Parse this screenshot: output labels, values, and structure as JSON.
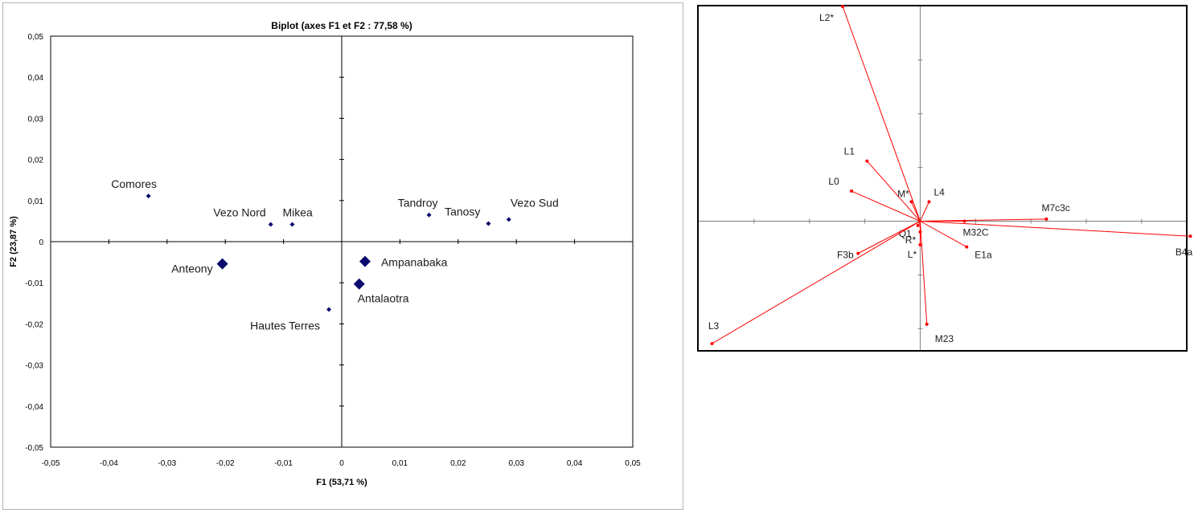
{
  "chart_data": [
    {
      "type": "scatter",
      "title": "Biplot (axes F1 et F2 : 77,58 %)",
      "xlabel": "F1 (53,71 %)",
      "ylabel": "F2 (23,87 %)",
      "xlim": [
        -0.05,
        0.05
      ],
      "ylim": [
        -0.05,
        0.05
      ],
      "xticks": [
        "-0,05",
        "-0,04",
        "-0,03",
        "-0,02",
        "-0,01",
        "0",
        "0,01",
        "0,02",
        "0,03",
        "0,04",
        "0,05"
      ],
      "yticks": [
        "0,05",
        "0,04",
        "0,03",
        "0,02",
        "0,01",
        "0",
        "-0,01",
        "-0,02",
        "-0,03",
        "-0,04",
        "-0,05"
      ],
      "grid": false,
      "marker_color": "#0a0a6e",
      "points": [
        {
          "label": "Comores",
          "x": -0.0332,
          "y": 0.0111,
          "size": "small"
        },
        {
          "label": "Vezo Nord",
          "x": -0.0122,
          "y": 0.0042,
          "size": "small"
        },
        {
          "label": "Mikea",
          "x": -0.0085,
          "y": 0.0042,
          "size": "small"
        },
        {
          "label": "Tandroy",
          "x": 0.015,
          "y": 0.0065,
          "size": "small"
        },
        {
          "label": "Tanosy",
          "x": 0.0252,
          "y": 0.0044,
          "size": "small"
        },
        {
          "label": "Vezo Sud",
          "x": 0.0287,
          "y": 0.0054,
          "size": "small"
        },
        {
          "label": "Anteony",
          "x": -0.0205,
          "y": -0.0054,
          "size": "large"
        },
        {
          "label": "Ampanabaka",
          "x": 0.004,
          "y": -0.0048,
          "size": "large"
        },
        {
          "label": "Antalaotra",
          "x": 0.003,
          "y": -0.0103,
          "size": "large"
        },
        {
          "label": "Hautes Terres",
          "x": -0.0022,
          "y": -0.0165,
          "size": "small"
        }
      ]
    },
    {
      "type": "vector",
      "title": "",
      "xlim": [
        -1.0,
        1.2
      ],
      "ylim": [
        -0.6,
        1.0
      ],
      "vector_color": "#ff0000",
      "vectors": [
        {
          "label": "L2*",
          "x": -0.35,
          "y": 1.0
        },
        {
          "label": "L1",
          "x": -0.24,
          "y": 0.28
        },
        {
          "label": "L0",
          "x": -0.31,
          "y": 0.14
        },
        {
          "label": "M*",
          "x": -0.04,
          "y": 0.09
        },
        {
          "label": "L4",
          "x": 0.04,
          "y": 0.09
        },
        {
          "label": "M7c3c",
          "x": 0.57,
          "y": 0.01
        },
        {
          "label": "M32C",
          "x": 0.2,
          "y": 0.0
        },
        {
          "label": "B4a",
          "x": 1.22,
          "y": -0.07
        },
        {
          "label": "Q1",
          "x": -0.01,
          "y": -0.02
        },
        {
          "label": "R*",
          "x": 0.0,
          "y": -0.05
        },
        {
          "label": "L*",
          "x": 0.0,
          "y": -0.11
        },
        {
          "label": "E1a",
          "x": 0.21,
          "y": -0.12
        },
        {
          "label": "F3b",
          "x": -0.28,
          "y": -0.15
        },
        {
          "label": "M23",
          "x": 0.03,
          "y": -0.48
        },
        {
          "label": "L3",
          "x": -0.94,
          "y": -0.57
        }
      ]
    }
  ]
}
